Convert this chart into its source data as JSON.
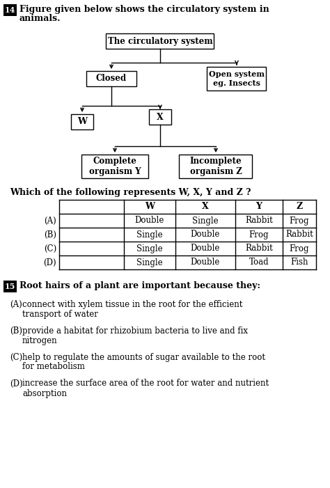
{
  "bg_color": "#ffffff",
  "q14_text_line1": "Figure given below shows the circulatory system in",
  "q14_text_line2": "animals.",
  "q14_question": "Which of the following represents W, X, Y and Z ?",
  "flowchart": {
    "root": "The circulatory system",
    "level1_left": "Closed",
    "level1_right": "Open system\neg. Insects",
    "level2_left": "W",
    "level2_right": "X",
    "level3_left": "Complete\norganism Y",
    "level3_right": "Incomplete\norganism Z"
  },
  "table_headers": [
    "W",
    "X",
    "Y",
    "Z"
  ],
  "table_rows": [
    [
      "(A)",
      "Double",
      "Single",
      "Rabbit",
      "Frog"
    ],
    [
      "(B)",
      "Single",
      "Double",
      "Frog",
      "Rabbit"
    ],
    [
      "(C)",
      "Single",
      "Double",
      "Rabbit",
      "Frog"
    ],
    [
      "(D)",
      "Single",
      "Double",
      "Toad",
      "Fish"
    ]
  ],
  "q15_text": "Root hairs of a plant are important because they:",
  "q15_options": [
    [
      "(A)",
      "connect with xylem tissue in the root for the efficient",
      "transport of water"
    ],
    [
      "(B)",
      "provide a habitat for rhizobium bacteria to live and fix",
      "nitrogen"
    ],
    [
      "(C)",
      "help to regulate the amounts of sugar available to the root",
      "for metabolism"
    ],
    [
      "(D)",
      "increase the surface area of the root for water and nutrient",
      "absorption"
    ]
  ]
}
